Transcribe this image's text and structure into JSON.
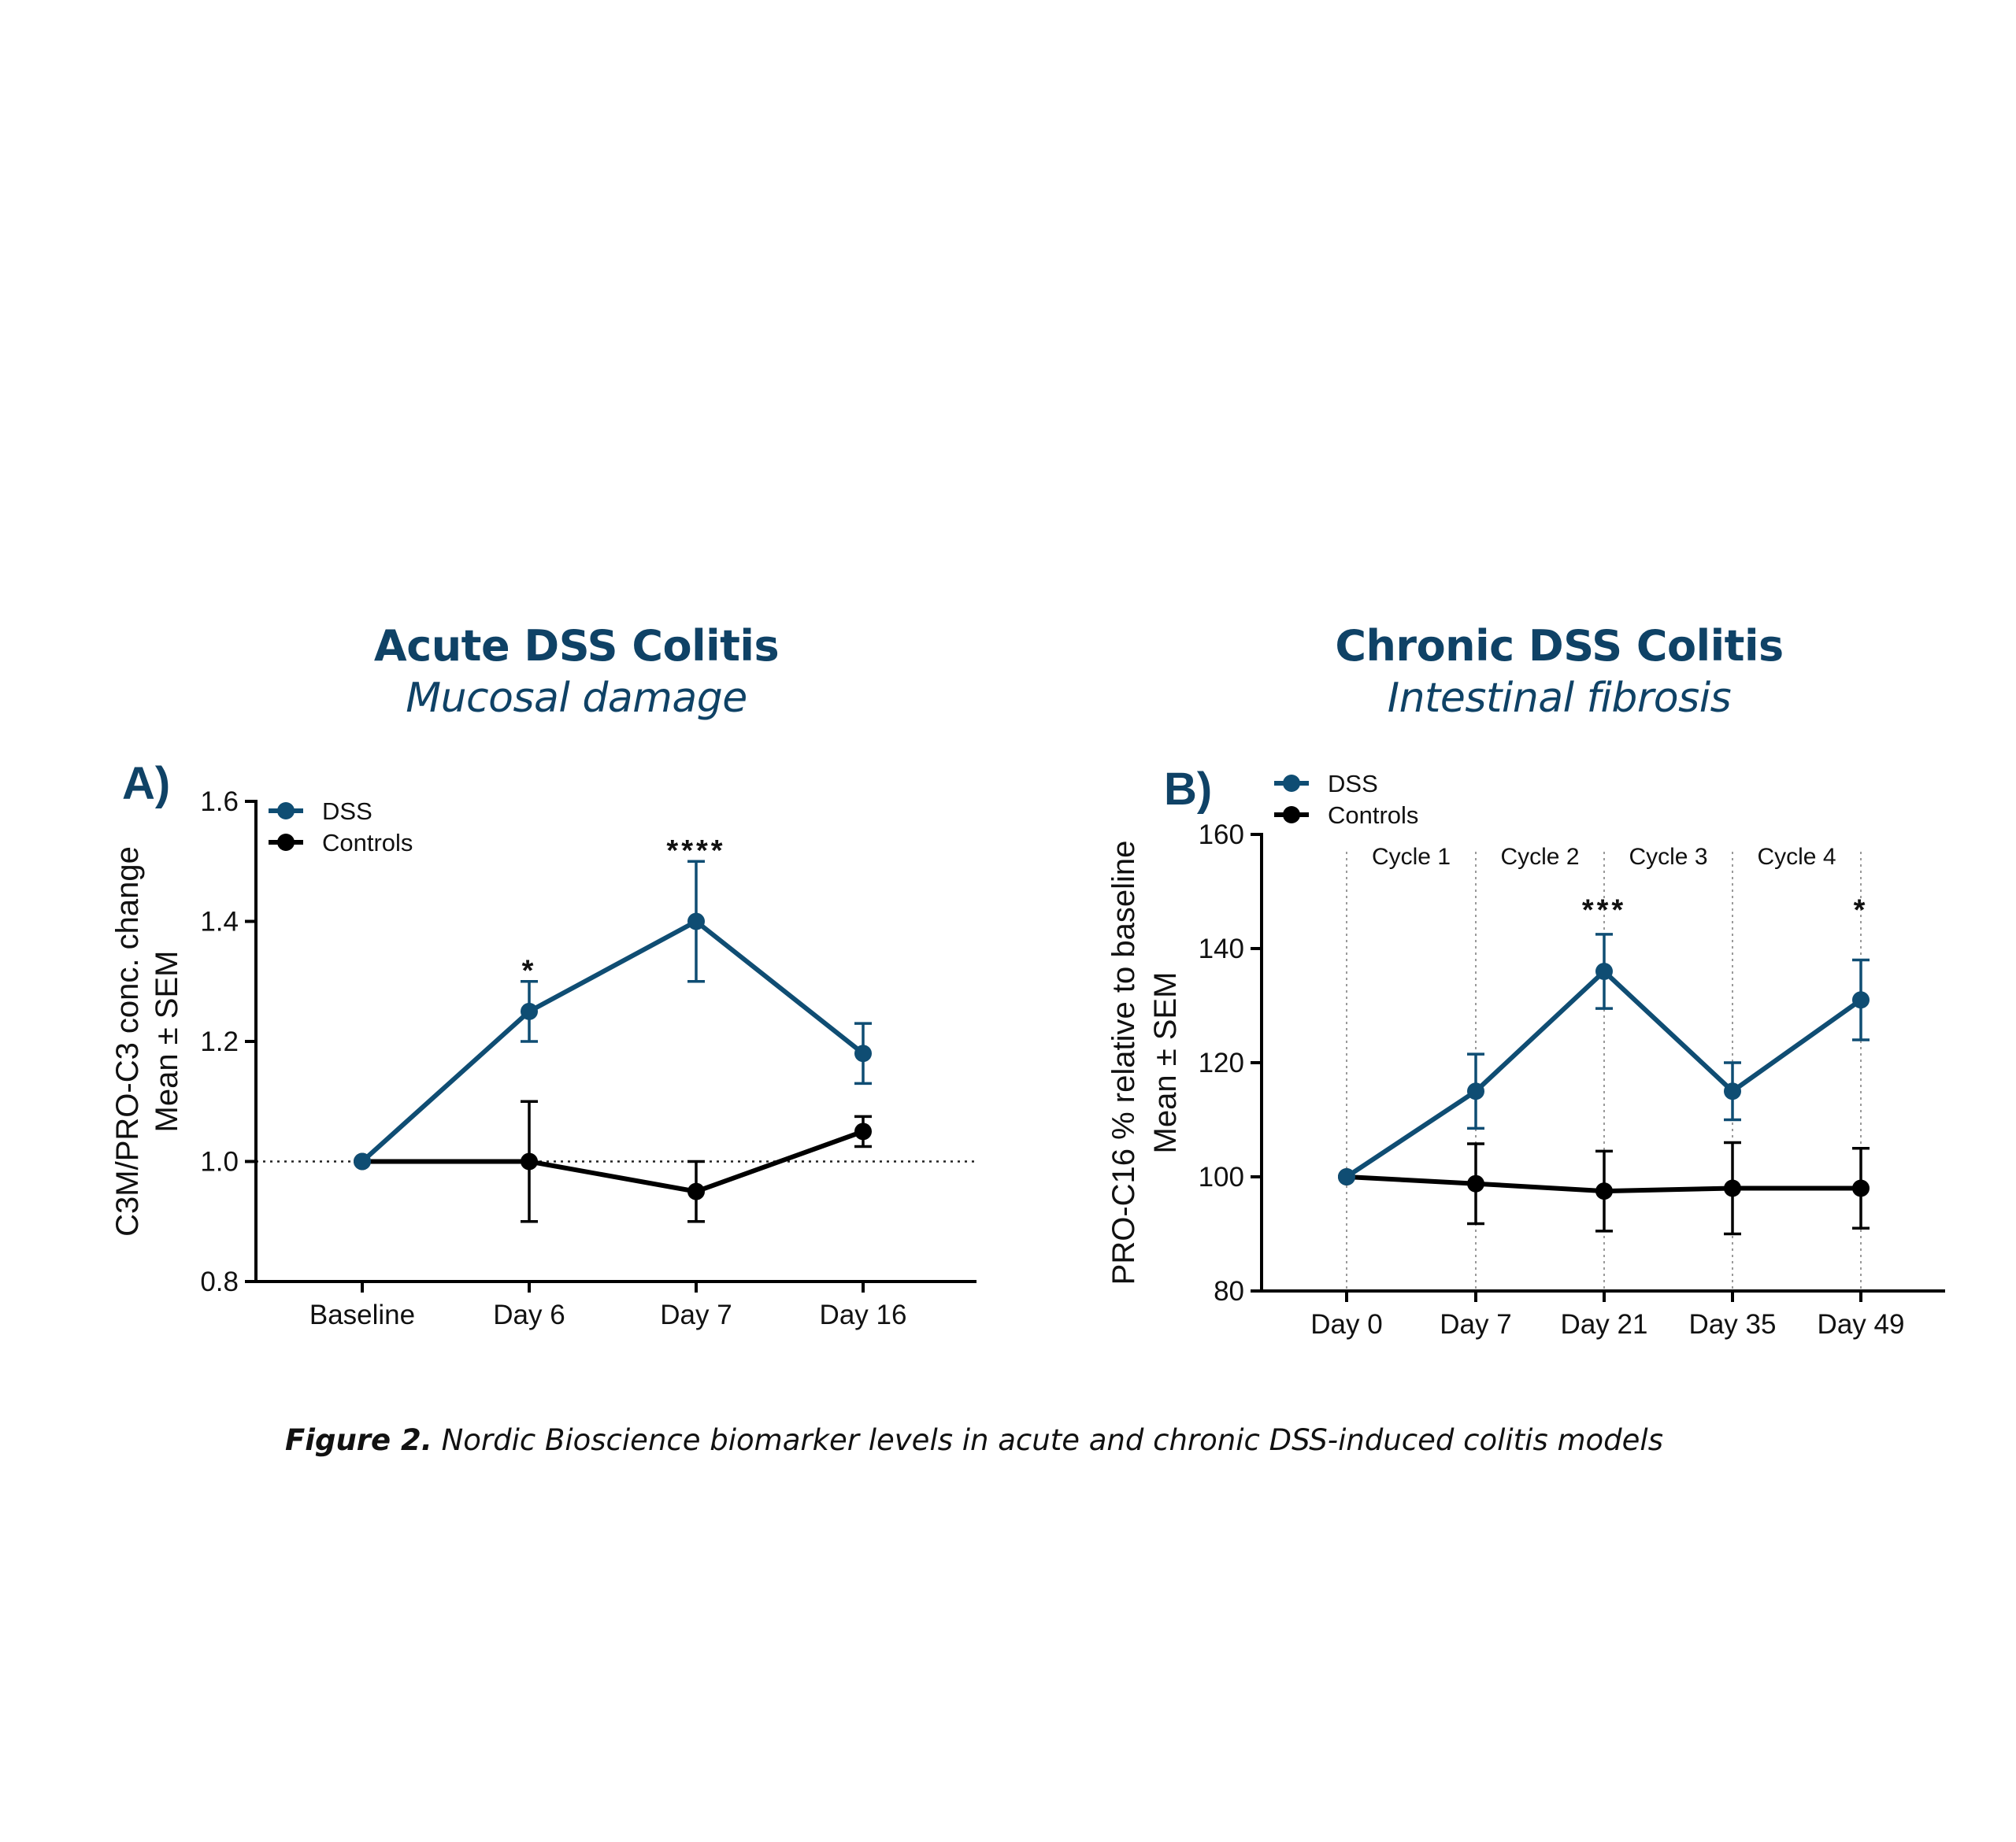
{
  "panels": {
    "a": {
      "title": "Acute DSS Colitis",
      "subtitle": "Mucosal damage"
    },
    "b": {
      "title": "Chronic DSS Colitis",
      "subtitle": "Intestinal fibrosis"
    }
  },
  "caption": {
    "lead": "Figure 2.",
    "text": " Nordic Bioscience biomarker levels in acute and chronic DSS-induced colitis models"
  },
  "colors": {
    "dss": "#0f4d73",
    "controls": "#000000",
    "heading": "#0f4266"
  },
  "chart_data": [
    {
      "type": "line",
      "panel_label": "A)",
      "ylabel": [
        "C3M/PRO-C3 conc. change",
        "Mean ± SEM"
      ],
      "categories": [
        "Baseline",
        "Day 6",
        "Day 7",
        "Day 16"
      ],
      "ylim": [
        0.8,
        1.6
      ],
      "yticks": [
        0.8,
        1.0,
        1.2,
        1.4,
        1.6
      ],
      "ytick_labels": [
        "0.8",
        "1.0",
        "1.2",
        "1.4",
        "1.6"
      ],
      "reference_line": 1.0,
      "legend_position": "top-left",
      "series": [
        {
          "name": "DSS",
          "color": "#0f4d73",
          "values": [
            1.0,
            1.25,
            1.4,
            1.18
          ],
          "errors": [
            0,
            0.05,
            0.1,
            0.05
          ]
        },
        {
          "name": "Controls",
          "color": "#000000",
          "values": [
            1.0,
            1.0,
            0.95,
            1.05
          ],
          "errors": [
            0,
            0.1,
            0.05,
            0.025
          ]
        }
      ],
      "annotations": [
        {
          "category": "Day 6",
          "text": "*",
          "y": 1.32
        },
        {
          "category": "Day 7",
          "text": "****",
          "y": 1.52
        }
      ]
    },
    {
      "type": "line",
      "panel_label": "B)",
      "ylabel": [
        "PRO-C16 % relative to baseline",
        "Mean ± SEM"
      ],
      "categories": [
        "Day 0",
        "Day 7",
        "Day 21",
        "Day 35",
        "Day 49"
      ],
      "ylim": [
        80,
        160
      ],
      "yticks": [
        80,
        100,
        120,
        140,
        160
      ],
      "ytick_labels": [
        "80",
        "100",
        "120",
        "140",
        "160"
      ],
      "legend_position": "top-left",
      "cycles": [
        "Cycle 1",
        "Cycle 2",
        "Cycle 3",
        "Cycle 4"
      ],
      "series": [
        {
          "name": "DSS",
          "color": "#0f4d73",
          "values": [
            100,
            115,
            136,
            115,
            131
          ],
          "errors": [
            0,
            6.5,
            6.5,
            5,
            7
          ]
        },
        {
          "name": "Controls",
          "color": "#000000",
          "values": [
            100,
            98.8,
            97.5,
            98,
            98
          ],
          "errors": [
            0,
            7,
            7,
            8,
            7
          ]
        }
      ],
      "annotations": [
        {
          "category": "Day 21",
          "text": "***",
          "y": 147
        },
        {
          "category": "Day 49",
          "text": "*",
          "y": 147
        }
      ]
    }
  ]
}
